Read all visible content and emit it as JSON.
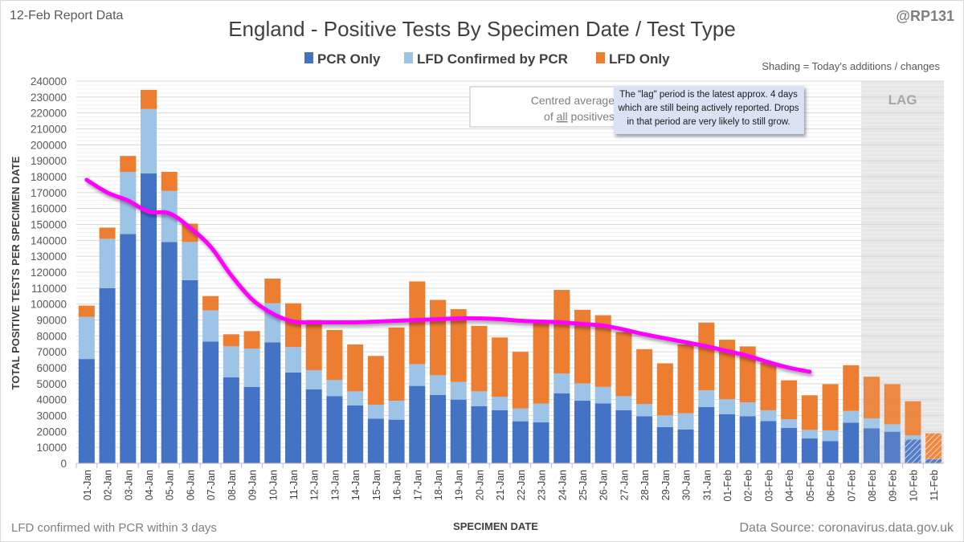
{
  "header": {
    "report_label": "12-Feb Report Data",
    "handle": "@RP131",
    "shading_note": "Shading = Today's additions / changes"
  },
  "footer": {
    "left_note": "LFD confirmed with PCR within 3 days",
    "source": "Data Source: coronavirus.data.gov.uk"
  },
  "annotations": {
    "avg_legend_line1": "Centred average",
    "avg_legend_line2_pre": "of ",
    "avg_legend_line2_u": "all",
    "avg_legend_line2_post": " positives",
    "lag_note": [
      "The \"lag\" period is the latest approx. 4 days",
      "which are still being actively reported.  Drops",
      "in that period are very likely to still grow."
    ],
    "lag_label": "LAG"
  },
  "colors": {
    "pcr": "#4472C4",
    "lfd_confirmed": "#9DC3E6",
    "lfd_only": "#ED7D31",
    "average": "#FF00FF",
    "lag_shade": "#E7E7E7"
  },
  "chart_data": {
    "type": "bar",
    "stacked": true,
    "title": "England - Positive Tests By Specimen Date / Test Type",
    "xlabel": "SPECIMEN DATE",
    "ylabel": "TOTAL POSITIVE TESTS PER SPECIMEN DATE",
    "ylim": [
      0,
      240000
    ],
    "ytick_step": 10000,
    "grid": true,
    "legend_placement": "top-center",
    "lag_days": 4,
    "categories": [
      "01-Jan",
      "02-Jan",
      "03-Jan",
      "04-Jan",
      "05-Jan",
      "06-Jan",
      "07-Jan",
      "08-Jan",
      "09-Jan",
      "10-Jan",
      "11-Jan",
      "12-Jan",
      "13-Jan",
      "14-Jan",
      "15-Jan",
      "16-Jan",
      "17-Jan",
      "18-Jan",
      "19-Jan",
      "20-Jan",
      "21-Jan",
      "22-Jan",
      "23-Jan",
      "24-Jan",
      "25-Jan",
      "26-Jan",
      "27-Jan",
      "28-Jan",
      "29-Jan",
      "30-Jan",
      "31-Jan",
      "01-Feb",
      "02-Feb",
      "03-Feb",
      "04-Feb",
      "05-Feb",
      "06-Feb",
      "07-Feb",
      "08-Feb",
      "09-Feb",
      "10-Feb",
      "11-Feb"
    ],
    "series": [
      {
        "name": "PCR Only",
        "values": [
          65500,
          110000,
          144000,
          182000,
          139000,
          115000,
          76500,
          54000,
          48000,
          76000,
          57000,
          46500,
          42200,
          36300,
          28100,
          27400,
          48600,
          43000,
          40000,
          35900,
          33300,
          26400,
          25700,
          44000,
          39300,
          37600,
          33300,
          29600,
          22700,
          21300,
          35300,
          30900,
          29600,
          26500,
          22300,
          15600,
          14000,
          25500,
          22000,
          19800,
          15000,
          2500
        ]
      },
      {
        "name": "LFD Confirmed by PCR",
        "values": [
          26500,
          31000,
          39000,
          40500,
          32000,
          24000,
          19500,
          19500,
          24000,
          24500,
          16000,
          12000,
          10100,
          8900,
          8700,
          11900,
          13700,
          12300,
          11100,
          9300,
          8500,
          8000,
          11800,
          12400,
          10900,
          10400,
          8900,
          7700,
          7400,
          10100,
          10600,
          9400,
          8700,
          6800,
          5400,
          5400,
          6700,
          7400,
          6200,
          4700,
          2500,
          200
        ]
      },
      {
        "name": "LFD Only",
        "values": [
          7000,
          7000,
          10000,
          12000,
          12000,
          11500,
          9000,
          7500,
          11000,
          15500,
          27500,
          31500,
          31400,
          29400,
          30600,
          46000,
          51900,
          47300,
          45700,
          41100,
          37200,
          35600,
          50900,
          52500,
          46200,
          45000,
          40200,
          34400,
          32700,
          43200,
          42500,
          37300,
          35100,
          29900,
          24400,
          21700,
          29000,
          28700,
          26200,
          25200,
          21500,
          16100
        ]
      }
    ],
    "line": {
      "name": "Centred average of all positives",
      "values": [
        178000,
        170000,
        165000,
        158000,
        157000,
        148000,
        136000,
        118000,
        103000,
        94000,
        89000,
        88500,
        88500,
        88500,
        89000,
        89500,
        90000,
        90500,
        91000,
        91000,
        90500,
        89500,
        89000,
        88500,
        87500,
        86500,
        84000,
        81000,
        78500,
        76000,
        73500,
        70500,
        67500,
        63500,
        60000,
        57500
      ]
    }
  }
}
